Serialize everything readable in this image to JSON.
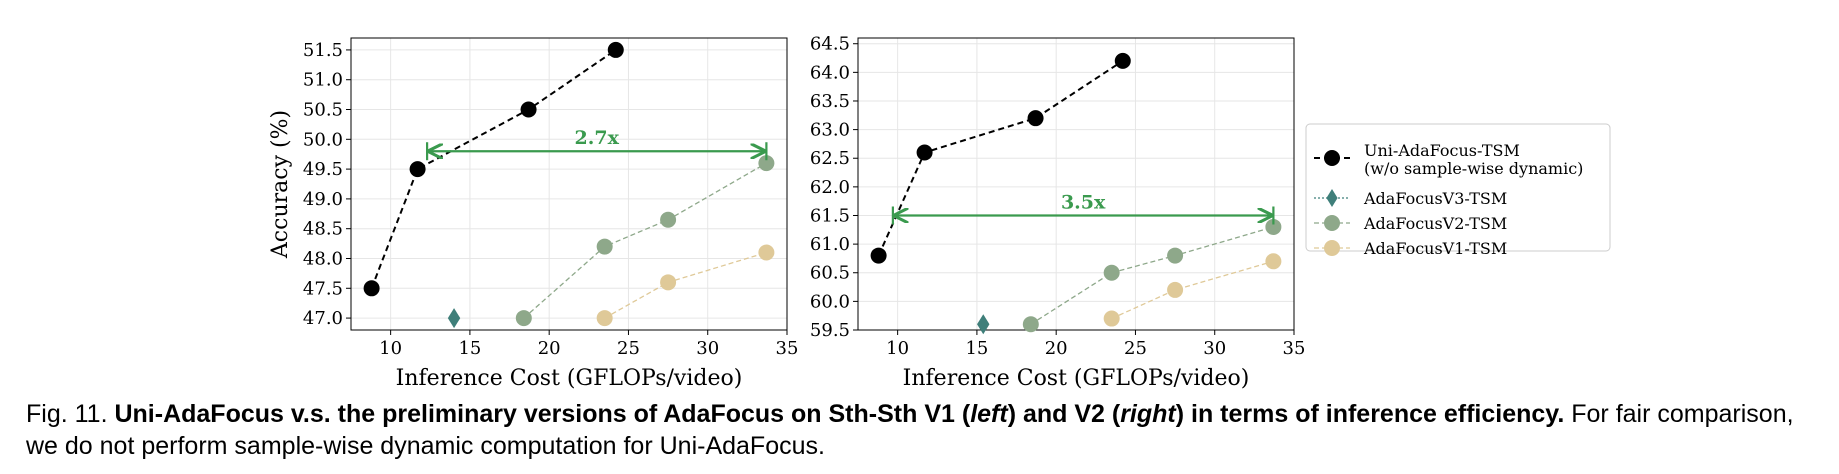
{
  "chart_data": [
    {
      "type": "line",
      "xlabel": "Inference Cost (GFLOPs/video)",
      "ylabel": "Accuracy (%)",
      "xlim": [
        7.5,
        35
      ],
      "ylim": [
        46.8,
        51.7
      ],
      "xticks": [
        10,
        15,
        20,
        25,
        30,
        35
      ],
      "yticks": [
        47.0,
        47.5,
        48.0,
        48.5,
        49.0,
        49.5,
        50.0,
        50.5,
        51.0,
        51.5
      ],
      "grid": true,
      "series": [
        {
          "name": "Uni-AdaFocus-TSM (w/o sample-wise dynamic)",
          "color": "#000000",
          "marker": "circle",
          "dash": "6,4",
          "x": [
            8.8,
            11.7,
            18.7,
            24.2
          ],
          "y": [
            47.5,
            49.5,
            50.5,
            51.5
          ]
        },
        {
          "name": "AdaFocusV3-TSM",
          "color": "#3f7f7a",
          "marker": "diamond",
          "dash": "2,2",
          "x": [
            14.0
          ],
          "y": [
            47.0
          ]
        },
        {
          "name": "AdaFocusV2-TSM",
          "color": "#8ea88a",
          "marker": "circle",
          "dash": "5,3",
          "x": [
            18.4,
            23.5,
            27.5,
            33.7
          ],
          "y": [
            47.0,
            48.2,
            48.65,
            49.6
          ]
        },
        {
          "name": "AdaFocusV1-TSM",
          "color": "#dfc998",
          "marker": "circle",
          "dash": "5,3",
          "x": [
            23.5,
            27.5,
            33.7
          ],
          "y": [
            47.0,
            47.6,
            48.1
          ]
        }
      ],
      "annotation": {
        "text": "2.7x",
        "x_start": 12.3,
        "x_end": 33.7,
        "y": 49.8,
        "color": "#3a9a4e"
      }
    },
    {
      "type": "line",
      "xlabel": "Inference Cost (GFLOPs/video)",
      "ylabel": "",
      "xlim": [
        7.5,
        35
      ],
      "ylim": [
        59.5,
        64.6
      ],
      "xticks": [
        10,
        15,
        20,
        25,
        30,
        35
      ],
      "yticks": [
        59.5,
        60.0,
        60.5,
        61.0,
        61.5,
        62.0,
        62.5,
        63.0,
        63.5,
        64.0,
        64.5
      ],
      "grid": true,
      "series": [
        {
          "name": "Uni-AdaFocus-TSM (w/o sample-wise dynamic)",
          "color": "#000000",
          "marker": "circle",
          "dash": "6,4",
          "x": [
            8.8,
            11.7,
            18.7,
            24.2
          ],
          "y": [
            60.8,
            62.6,
            63.2,
            64.2
          ]
        },
        {
          "name": "AdaFocusV3-TSM",
          "color": "#3f7f7a",
          "marker": "diamond",
          "dash": "2,2",
          "x": [
            15.4
          ],
          "y": [
            59.6
          ]
        },
        {
          "name": "AdaFocusV2-TSM",
          "color": "#8ea88a",
          "marker": "circle",
          "dash": "5,3",
          "x": [
            18.4,
            23.5,
            27.5,
            33.7
          ],
          "y": [
            59.6,
            60.5,
            60.8,
            61.3
          ]
        },
        {
          "name": "AdaFocusV1-TSM",
          "color": "#dfc998",
          "marker": "circle",
          "dash": "5,3",
          "x": [
            23.5,
            27.5,
            33.7
          ],
          "y": [
            59.7,
            60.2,
            60.7
          ]
        }
      ],
      "annotation": {
        "text": "3.5x",
        "x_start": 9.7,
        "x_end": 33.7,
        "y": 61.5,
        "color": "#3a9a4e"
      }
    }
  ],
  "legend": {
    "placement": "right",
    "entries": [
      {
        "line1": "Uni-AdaFocus-TSM",
        "line2": "(w/o sample-wise dynamic)",
        "color": "#000000",
        "marker": "circle",
        "dash": "6,4"
      },
      {
        "line1": "AdaFocusV3-TSM",
        "line2": "",
        "color": "#3f7f7a",
        "marker": "diamond",
        "dash": "2,2"
      },
      {
        "line1": "AdaFocusV2-TSM",
        "line2": "",
        "color": "#8ea88a",
        "marker": "circle",
        "dash": "5,3"
      },
      {
        "line1": "AdaFocusV1-TSM",
        "line2": "",
        "color": "#dfc998",
        "marker": "circle",
        "dash": "5,3"
      }
    ]
  },
  "caption": {
    "label": "Fig. 11.",
    "bold_1": "Uni-AdaFocus v.s. the preliminary versions of AdaFocus on Sth-Sth V1 (",
    "bold_italic_1": "left",
    "bold_2": ") and V2 (",
    "bold_italic_2": "right",
    "bold_3": ") in terms of inference efficiency.",
    "rest": "For fair comparison, we do not perform sample-wise dynamic computation for Uni-AdaFocus."
  }
}
